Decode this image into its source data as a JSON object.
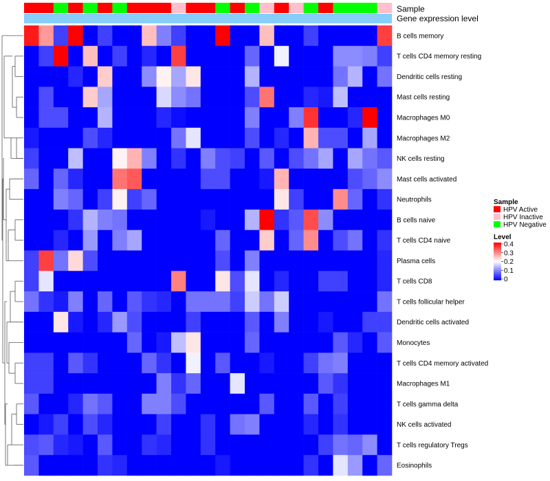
{
  "chart_data": {
    "type": "heatmap",
    "title": "",
    "annotation_labels": {
      "sample": "Sample",
      "expression": "Gene expression level"
    },
    "rows": [
      "B cells memory",
      "T cells CD4 memory resting",
      "Dendritic cells resting",
      "Mast cells resting",
      "Macrophages M0",
      "Macrophages M2",
      "NK cells resting",
      "Mast cells activated",
      "Neutrophils",
      "B cells naive",
      "T cells CD4 naive",
      "Plasma cells",
      "T cells CD8",
      "T cells follicular helper",
      "Dendritic cells activated",
      "Monocytes",
      "T cells CD4 memory activated",
      "Macrophages M1",
      "T cells gamma delta",
      "NK cells activated",
      "T cells regulatory  Tregs",
      "Eosinophils"
    ],
    "sample_groups": [
      "HPV Active",
      "HPV Active",
      "HPV Negative",
      "HPV Active",
      "HPV Negative",
      "HPV Active",
      "HPV Negative",
      "HPV Active",
      "HPV Active",
      "HPV Active",
      "HPV Inactive",
      "HPV Active",
      "HPV Active",
      "HPV Negative",
      "HPV Active",
      "HPV Negative",
      "HPV Inactive",
      "HPV Active",
      "HPV Inactive",
      "HPV Negative",
      "HPV Active",
      "HPV Negative",
      "HPV Negative",
      "HPV Negative",
      "HPV Inactive"
    ],
    "values": [
      [
        0.38,
        0.28,
        0.05,
        0.4,
        0.0,
        0.05,
        0.0,
        0.0,
        0.25,
        0.1,
        0.05,
        0.0,
        0.0,
        0.4,
        0.0,
        0.0,
        0.25,
        0.0,
        0.0,
        0.05,
        0.0,
        0.0,
        0.0,
        0.0,
        0.35
      ],
      [
        0.0,
        0.05,
        0.4,
        0.0,
        0.25,
        0.0,
        0.05,
        0.0,
        0.03,
        0.0,
        0.35,
        0.0,
        0.0,
        0.0,
        0.0,
        0.08,
        0.0,
        0.19,
        0.0,
        0.0,
        0.0,
        0.11,
        0.11,
        0.1,
        0.05
      ],
      [
        0.0,
        0.0,
        0.0,
        0.03,
        0.0,
        0.24,
        0.0,
        0.0,
        0.11,
        0.21,
        0.13,
        0.22,
        0.0,
        0.0,
        0.0,
        0.14,
        0.0,
        0.0,
        0.0,
        0.0,
        0.0,
        0.09,
        0.14,
        0.0,
        0.09
      ],
      [
        0.0,
        0.06,
        0.0,
        0.0,
        0.24,
        0.13,
        0.0,
        0.0,
        0.0,
        0.17,
        0.11,
        0.09,
        0.0,
        0.0,
        0.0,
        0.06,
        0.31,
        0.0,
        0.0,
        0.03,
        0.02,
        0.15,
        0.0,
        0.0,
        0.0
      ],
      [
        0.0,
        0.06,
        0.06,
        0.0,
        0.0,
        0.14,
        0.0,
        0.0,
        0.0,
        0.03,
        0.01,
        0.0,
        0.0,
        0.0,
        0.0,
        0.1,
        0.0,
        0.0,
        0.1,
        0.36,
        0.0,
        0.0,
        0.03,
        0.4,
        0.0
      ],
      [
        0.02,
        0.0,
        0.0,
        0.0,
        0.06,
        0.03,
        0.0,
        0.0,
        0.0,
        0.0,
        0.09,
        0.18,
        0.0,
        0.0,
        0.0,
        0.06,
        0.0,
        0.03,
        0.0,
        0.26,
        0.06,
        0.06,
        0.0,
        0.13,
        0.0
      ],
      [
        0.05,
        0.0,
        0.0,
        0.15,
        0.0,
        0.0,
        0.21,
        0.26,
        0.1,
        0.0,
        0.04,
        0.0,
        0.1,
        0.06,
        0.05,
        0.0,
        0.07,
        0.0,
        0.06,
        0.09,
        0.13,
        0.0,
        0.13,
        0.09,
        0.07
      ],
      [
        0.08,
        0.0,
        0.08,
        0.03,
        0.0,
        0.0,
        0.31,
        0.33,
        0.0,
        0.0,
        0.0,
        0.0,
        0.06,
        0.06,
        0.0,
        0.0,
        0.02,
        0.26,
        0.0,
        0.0,
        0.0,
        0.0,
        0.06,
        0.08,
        0.11
      ],
      [
        0.0,
        0.0,
        0.1,
        0.08,
        0.0,
        0.05,
        0.21,
        0.05,
        0.08,
        0.0,
        0.0,
        0.0,
        0.0,
        0.0,
        0.0,
        0.0,
        0.0,
        0.22,
        0.05,
        0.0,
        0.0,
        0.29,
        0.08,
        0.0,
        0.04
      ],
      [
        0.0,
        0.0,
        0.0,
        0.04,
        0.14,
        0.1,
        0.09,
        0.0,
        0.0,
        0.0,
        0.0,
        0.0,
        0.02,
        0.0,
        0.0,
        0.14,
        0.4,
        0.04,
        0.07,
        0.34,
        0.11,
        0.0,
        0.0,
        0.0,
        0.0
      ],
      [
        0.0,
        0.0,
        0.03,
        0.0,
        0.12,
        0.0,
        0.1,
        0.13,
        0.0,
        0.0,
        0.0,
        0.0,
        0.0,
        0.08,
        0.0,
        0.0,
        0.24,
        0.0,
        0.08,
        0.29,
        0.0,
        0.06,
        0.09,
        0.0,
        0.04
      ],
      [
        0.05,
        0.35,
        0.09,
        0.23,
        0.06,
        0.0,
        0.0,
        0.0,
        0.0,
        0.0,
        0.0,
        0.0,
        0.0,
        0.06,
        0.0,
        0.1,
        0.0,
        0.0,
        0.0,
        0.0,
        0.0,
        0.0,
        0.0,
        0.0,
        0.03
      ],
      [
        0.05,
        0.18,
        0.0,
        0.0,
        0.0,
        0.0,
        0.0,
        0.0,
        0.0,
        0.0,
        0.3,
        0.0,
        0.0,
        0.22,
        0.06,
        0.18,
        0.0,
        0.03,
        0.0,
        0.0,
        0.05,
        0.05,
        0.0,
        0.0,
        0.03
      ],
      [
        0.09,
        0.04,
        0.02,
        0.1,
        0.0,
        0.08,
        0.0,
        0.07,
        0.04,
        0.03,
        0.0,
        0.09,
        0.09,
        0.09,
        0.05,
        0.16,
        0.09,
        0.16,
        0.0,
        0.0,
        0.0,
        0.0,
        0.0,
        0.0,
        0.09
      ],
      [
        0.0,
        0.0,
        0.22,
        0.02,
        0.0,
        0.03,
        0.12,
        0.06,
        0.0,
        0.0,
        0.0,
        0.05,
        0.0,
        0.0,
        0.0,
        0.07,
        0.0,
        0.1,
        0.0,
        0.0,
        0.02,
        0.0,
        0.0,
        0.05,
        0.05
      ],
      [
        0.0,
        0.0,
        0.0,
        0.0,
        0.0,
        0.0,
        0.0,
        0.08,
        0.0,
        0.02,
        0.15,
        0.22,
        0.0,
        0.0,
        0.0,
        0.08,
        0.0,
        0.0,
        0.0,
        0.0,
        0.0,
        0.07,
        0.03,
        0.0,
        0.07
      ],
      [
        0.05,
        0.05,
        0.0,
        0.07,
        0.04,
        0.0,
        0.0,
        0.0,
        0.08,
        0.04,
        0.0,
        0.19,
        0.0,
        0.07,
        0.0,
        0.0,
        0.02,
        0.0,
        0.0,
        0.05,
        0.09,
        0.1,
        0.0,
        0.0,
        0.0
      ],
      [
        0.05,
        0.05,
        0.0,
        0.0,
        0.0,
        0.0,
        0.0,
        0.0,
        0.0,
        0.1,
        0.04,
        0.08,
        0.0,
        0.0,
        0.18,
        0.0,
        0.0,
        0.0,
        0.0,
        0.0,
        0.07,
        0.04,
        0.0,
        0.0,
        0.0
      ],
      [
        0.07,
        0.0,
        0.0,
        0.03,
        0.09,
        0.07,
        0.0,
        0.0,
        0.1,
        0.1,
        0.06,
        0.0,
        0.0,
        0.0,
        0.0,
        0.0,
        0.07,
        0.0,
        0.0,
        0.07,
        0.0,
        0.05,
        0.0,
        0.0,
        0.0
      ],
      [
        0.0,
        0.02,
        0.05,
        0.0,
        0.06,
        0.03,
        0.0,
        0.0,
        0.0,
        0.05,
        0.0,
        0.0,
        0.04,
        0.0,
        0.09,
        0.1,
        0.0,
        0.0,
        0.0,
        0.03,
        0.0,
        0.04,
        0.0,
        0.0,
        0.0
      ],
      [
        0.06,
        0.07,
        0.03,
        0.02,
        0.0,
        0.07,
        0.0,
        0.0,
        0.04,
        0.03,
        0.0,
        0.0,
        0.04,
        0.0,
        0.0,
        0.0,
        0.0,
        0.0,
        0.0,
        0.0,
        0.05,
        0.09,
        0.08,
        0.11,
        0.0
      ],
      [
        0.07,
        0.0,
        0.0,
        0.0,
        0.0,
        0.04,
        0.03,
        0.0,
        0.0,
        0.0,
        0.0,
        0.0,
        0.0,
        0.02,
        0.0,
        0.0,
        0.0,
        0.0,
        0.0,
        0.04,
        0.0,
        0.18,
        0.12,
        0.0,
        0.08
      ]
    ],
    "color_scale": {
      "min": 0,
      "max": 0.4,
      "colors": [
        "#0000ff",
        "#ffffff",
        "#ff0000"
      ]
    },
    "legend": {
      "position": "right",
      "sample_title": "Sample",
      "sample_entries": [
        {
          "label": "HPV Active",
          "color": "#ff0000"
        },
        {
          "label": "HPV Inactive",
          "color": "#ffc0cb"
        },
        {
          "label": "HPV Negative",
          "color": "#00ff00"
        }
      ],
      "level_title": "Level",
      "level_ticks": [
        "0.4",
        "0.3",
        "0.2",
        "0.1",
        "0"
      ]
    },
    "expression_color": "#87cefa"
  }
}
